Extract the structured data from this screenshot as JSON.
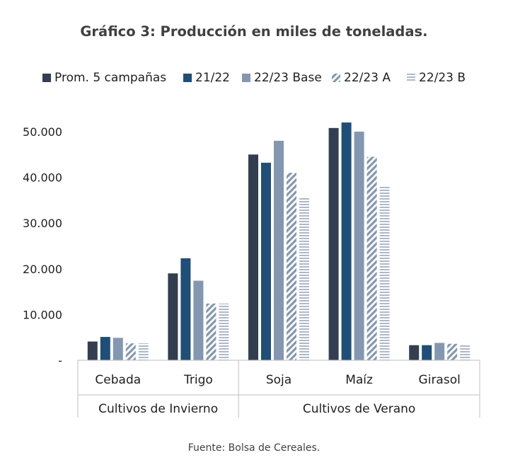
{
  "page": {
    "title": "Gráfico 3: Producción en miles de toneladas.",
    "source": "Fuente: Bolsa de Cereales."
  },
  "chart_data": {
    "type": "bar",
    "title": "Gráfico 3: Producción en miles de toneladas.",
    "ylim": [
      0,
      55000
    ],
    "yticks": [
      0,
      10000,
      20000,
      30000,
      40000,
      50000
    ],
    "ytick_labels": [
      "-",
      "10.000",
      "20.000",
      "30.000",
      "40.000",
      "50.000"
    ],
    "grid": false,
    "legend_position": "top",
    "categories": [
      "Cebada",
      "Trigo",
      "Soja",
      "Maíz",
      "Girasol"
    ],
    "groups": [
      {
        "label": "Cultivos de Invierno",
        "categories": [
          "Cebada",
          "Trigo"
        ]
      },
      {
        "label": "Cultivos de Verano",
        "categories": [
          "Soja",
          "Maíz",
          "Girasol"
        ]
      }
    ],
    "series": [
      {
        "name": "Prom. 5 campañas",
        "color": "#333f50",
        "pattern": "solid",
        "values": [
          4100,
          19000,
          45000,
          50800,
          3300
        ]
      },
      {
        "name": "21/22",
        "color": "#1f4e79",
        "pattern": "solid",
        "values": [
          5100,
          22300,
          43200,
          52000,
          3300
        ]
      },
      {
        "name": "22/23 Base",
        "color": "#8497b0",
        "pattern": "solid",
        "values": [
          4900,
          17400,
          48000,
          50000,
          3800
        ]
      },
      {
        "name": "22/23 A",
        "color": "#8497b0",
        "pattern": "diagonal",
        "values": [
          3700,
          12400,
          41000,
          44500,
          3600
        ]
      },
      {
        "name": "22/23 B",
        "color": "#adb9ca",
        "pattern": "horizontal",
        "values": [
          3700,
          12400,
          35600,
          38000,
          3300
        ]
      }
    ]
  }
}
